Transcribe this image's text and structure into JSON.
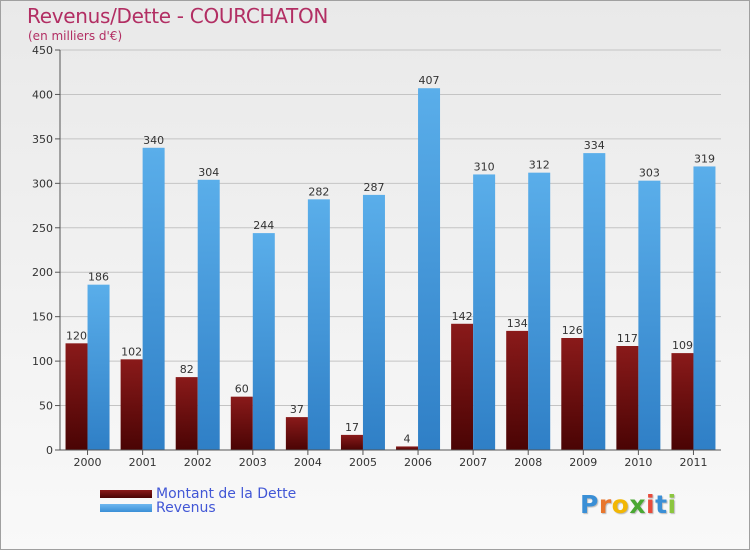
{
  "chart_data": {
    "type": "bar",
    "title": "Revenus/Dette - COURCHATON",
    "subtitle": "(en milliers d'€)",
    "categories": [
      "2000",
      "2001",
      "2002",
      "2003",
      "2004",
      "2005",
      "2006",
      "2007",
      "2008",
      "2009",
      "2010",
      "2011"
    ],
    "series": [
      {
        "name": "Montant de la Dette",
        "color": "#6b0a0a",
        "values": [
          120,
          102,
          82,
          60,
          37,
          17,
          4,
          142,
          134,
          126,
          117,
          109
        ]
      },
      {
        "name": "Revenus",
        "color": "#4a9ee2",
        "values": [
          186,
          340,
          304,
          244,
          282,
          287,
          407,
          310,
          312,
          334,
          303,
          319
        ]
      }
    ],
    "ylim": [
      0,
      450
    ],
    "yticks": [
      0,
      50,
      100,
      150,
      200,
      250,
      300,
      350,
      400,
      450
    ],
    "grid": true,
    "xlabel": "",
    "ylabel": ""
  },
  "legend": {
    "items": [
      {
        "label": "Montant de la Dette",
        "color": "#6b0a0a"
      },
      {
        "label": "Revenus",
        "color": "#4a9ee2"
      }
    ]
  },
  "logo": {
    "letters": [
      "P",
      "r",
      "o",
      "x",
      "i",
      "t",
      "i"
    ],
    "colors": [
      "#3a8fd6",
      "#e8762d",
      "#f2b705",
      "#4aa832",
      "#e84b3c",
      "#3a8fd6",
      "#8cc63f"
    ]
  }
}
